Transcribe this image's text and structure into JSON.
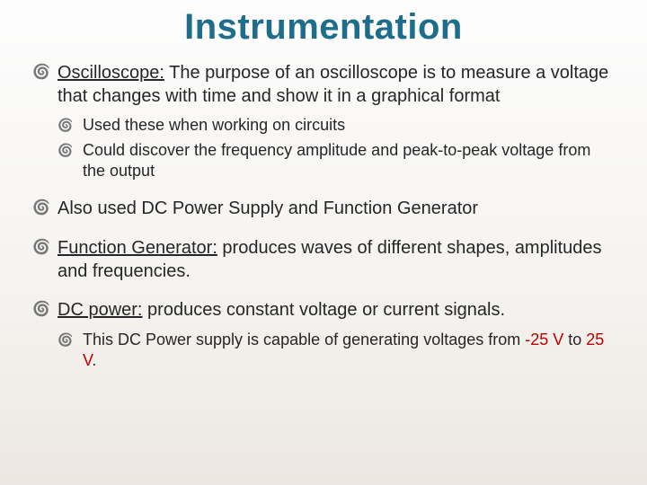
{
  "title_color": "#1f6d8c",
  "text_color": "#262626",
  "title": "Instrumentation",
  "items": [
    {
      "term": "Oscilloscope:",
      "text": " The purpose of an oscilloscope is to measure a voltage that changes with time and show it in a graphical format",
      "sub": [
        "Used these when working on circuits",
        "Could discover the frequency amplitude and peak-to-peak voltage from the output"
      ]
    },
    {
      "text": "Also used DC Power Supply and Function Generator"
    },
    {
      "term": "Function Generator:",
      "text": " produces waves of different shapes, amplitudes and frequencies."
    },
    {
      "term": "DC power:",
      "text": " produces constant voltage or current signals.",
      "sub_rich": {
        "prefix": "This DC Power supply is capable of generating voltages from ",
        "neg": "-25 V",
        "mid": " to ",
        "pos": "25 V",
        "suffix": "."
      }
    }
  ]
}
